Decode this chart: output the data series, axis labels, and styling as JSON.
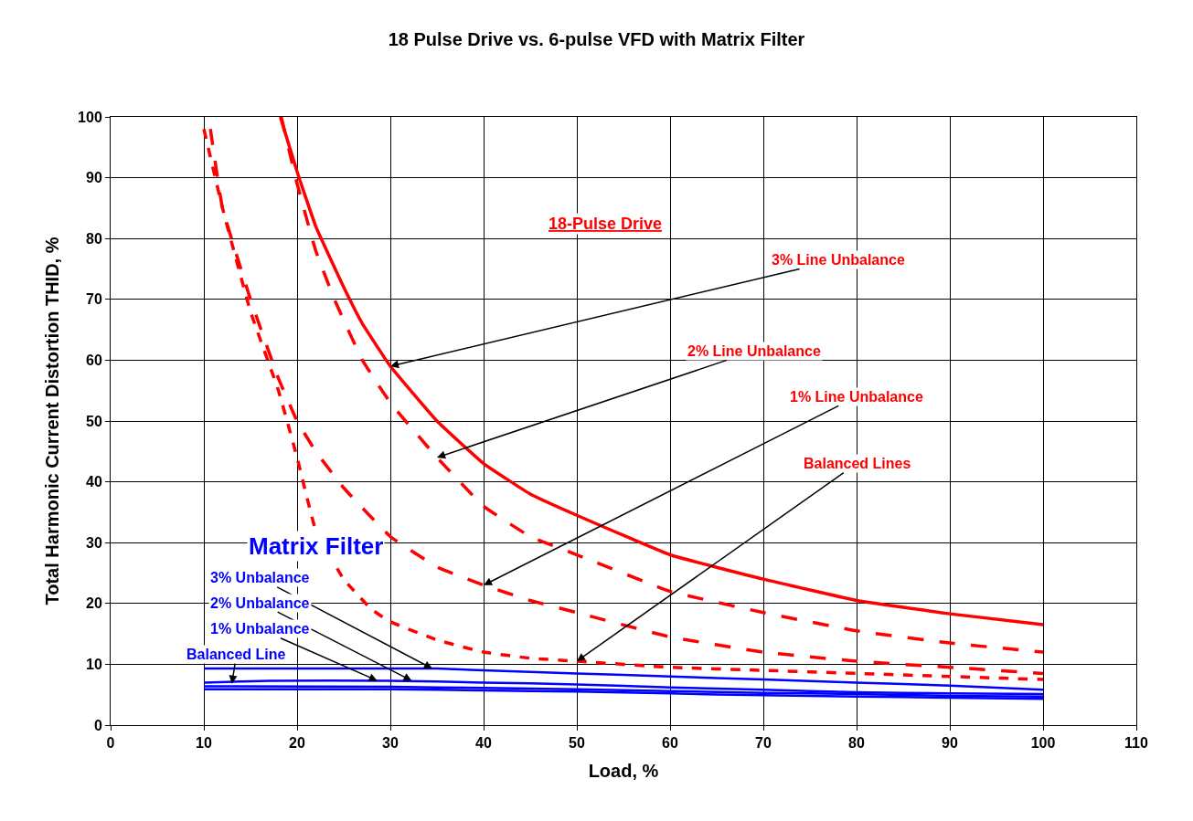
{
  "chart_data": {
    "type": "line",
    "title": "18 Pulse Drive vs. 6-pulse VFD with Matrix Filter",
    "xlabel": "Load, %",
    "ylabel": "Total Harmonic Current Distortion THID, %",
    "xlim": [
      0,
      110
    ],
    "xticks": [
      0,
      10,
      20,
      30,
      40,
      50,
      60,
      70,
      80,
      90,
      100,
      110
    ],
    "ylim": [
      0,
      100
    ],
    "yticks": [
      0,
      10,
      20,
      30,
      40,
      50,
      60,
      70,
      80,
      90,
      100
    ],
    "grid": true,
    "series": [
      {
        "color": "#ff0000",
        "line_style": "solid",
        "x": [
          18.2,
          20,
          22,
          25,
          27,
          30,
          35,
          40,
          45,
          50,
          60,
          70,
          80,
          90,
          100
        ],
        "values": [
          100,
          91,
          82,
          72,
          66,
          59,
          50,
          43,
          38,
          34.5,
          28,
          24,
          20.5,
          18.3,
          16.5
        ]
      },
      {
        "color": "#ff0000",
        "line_style": "dashed",
        "x": [
          18.3,
          20,
          22,
          24,
          27,
          30,
          35,
          40,
          45,
          50,
          60,
          70,
          80,
          90,
          100
        ],
        "values": [
          100,
          89,
          78,
          70,
          60,
          53,
          44,
          36,
          31,
          28,
          22,
          18.5,
          15.5,
          13.5,
          12
        ]
      },
      {
        "color": "#ff0000",
        "line_style": "dashed",
        "x": [
          10.7,
          12,
          15,
          18,
          20,
          22,
          25,
          30,
          35,
          40,
          45,
          50,
          60,
          70,
          80,
          90,
          100
        ],
        "values": [
          98,
          85,
          70,
          57,
          50,
          45,
          39,
          31,
          26,
          23,
          20.5,
          18.5,
          14.5,
          12,
          10.5,
          9.5,
          8.5
        ]
      },
      {
        "color": "#ff0000",
        "line_style": "dotted",
        "x": [
          10,
          12,
          15,
          18,
          20,
          22,
          25,
          28,
          30,
          35,
          40,
          45,
          50,
          60,
          70,
          80,
          90,
          100
        ],
        "values": [
          98,
          85,
          68,
          55,
          44,
          32,
          24,
          19,
          17,
          14,
          12,
          11,
          10.5,
          9.5,
          9,
          8.5,
          8,
          7.5
        ]
      },
      {
        "color": "#0000ff",
        "line_style": "solid",
        "x": [
          10,
          35,
          40,
          50,
          60,
          70,
          80,
          90,
          100
        ],
        "values": [
          9.3,
          9.3,
          9,
          8.5,
          8,
          7.5,
          7,
          6.5,
          5.8
        ]
      },
      {
        "color": "#0000ff",
        "line_style": "solid",
        "x": [
          10,
          17,
          30,
          40,
          50,
          60,
          70,
          80,
          90,
          100
        ],
        "values": [
          7,
          7.3,
          7.3,
          7,
          6.7,
          6.2,
          5.8,
          5.4,
          5.2,
          5.1
        ]
      },
      {
        "color": "#0000ff",
        "line_style": "solid",
        "x": [
          10,
          30,
          40,
          50,
          60,
          70,
          80,
          90,
          100
        ],
        "values": [
          6.4,
          6.3,
          6.1,
          5.9,
          5.6,
          5.3,
          5.1,
          4.8,
          4.7
        ]
      },
      {
        "color": "#0000ff",
        "line_style": "solid",
        "x": [
          10,
          30,
          40,
          50,
          60,
          70,
          80,
          90,
          100
        ],
        "values": [
          5.9,
          5.9,
          5.7,
          5.5,
          5.2,
          4.9,
          4.7,
          4.5,
          4.3
        ]
      }
    ],
    "annotations": [
      "18-Pulse Drive",
      {
        "text": "3% Line Unbalance",
        "x": 30,
        "y": 59
      },
      {
        "text": "2% Line Unbalance",
        "x": 35,
        "y": 44
      },
      {
        "text": "1% Line Unbalance",
        "x": 40,
        "y": 23
      },
      {
        "text": "Balanced Lines",
        "x": 50,
        "y": 10.5
      },
      "Matrix Filter",
      {
        "text": "3% Unbalance",
        "x": 34.5,
        "y": 9.3
      },
      {
        "text": "2% Unbalance",
        "x": 32.3,
        "y": 7.3
      },
      {
        "text": "1% Unbalance",
        "x": 28.6,
        "y": 7.3
      },
      {
        "text": "Balanced Line",
        "x": 13,
        "y": 6.8
      }
    ]
  }
}
